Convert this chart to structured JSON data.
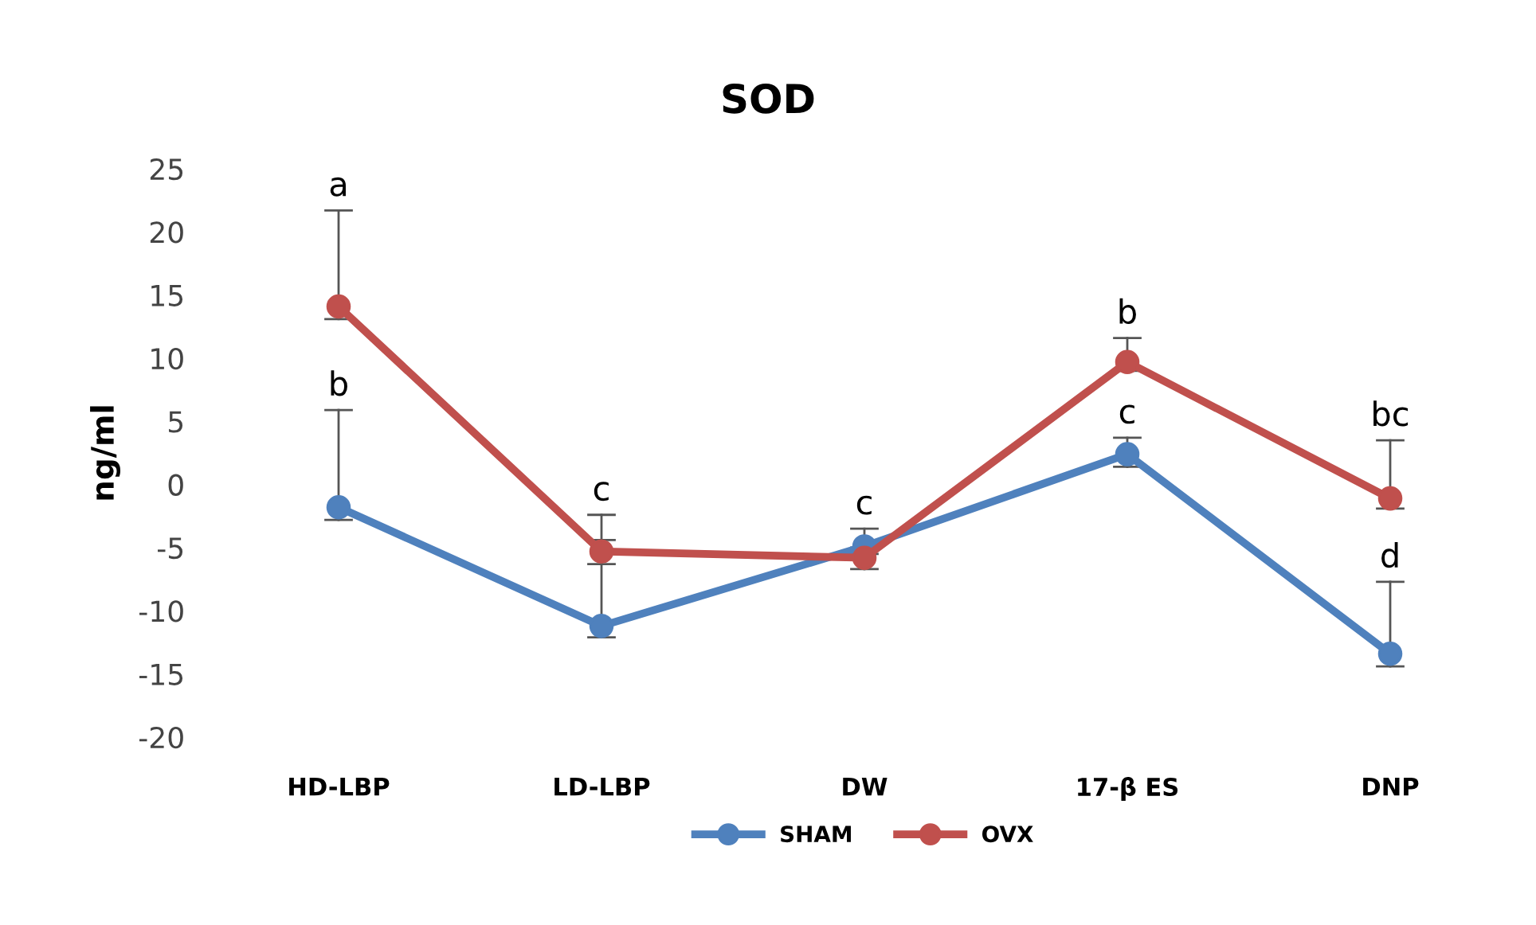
{
  "chart_data": {
    "type": "line",
    "title": "SOD",
    "ylabel": "ng/ml",
    "categories": [
      "HD-LBP",
      "LD-LBP",
      "DW",
      "17-β ES",
      "DNP"
    ],
    "series": [
      {
        "name": "SHAM",
        "color": "#4f81bd",
        "values": [
          -1.8,
          -11.2,
          -4.9,
          2.4,
          -13.4
        ],
        "errors": [
          [
            -2.8,
            5.9
          ],
          [
            -12.1,
            -4.4
          ],
          [
            -5.5,
            -3.5
          ],
          [
            1.4,
            3.7
          ],
          [
            -14.4,
            -7.7
          ]
        ]
      },
      {
        "name": "OVX",
        "color": "#c0504d",
        "values": [
          14.1,
          -5.3,
          -5.8,
          9.7,
          -1.1
        ],
        "errors": [
          [
            13.1,
            21.7
          ],
          [
            -6.3,
            -2.4
          ],
          [
            -6.7,
            -5.0
          ],
          [
            9.0,
            11.6
          ],
          [
            -1.9,
            3.5
          ]
        ]
      }
    ],
    "annotations": [
      {
        "text": "a",
        "x": "HD-LBP",
        "y": 21.7
      },
      {
        "text": "b",
        "x": "HD-LBP",
        "y": 5.9
      },
      {
        "text": "c",
        "x": "LD-LBP",
        "y": -2.4
      },
      {
        "text": "c",
        "x": "DW",
        "y": -3.5
      },
      {
        "text": "b",
        "x": "17-β ES",
        "y": 11.6
      },
      {
        "text": "c",
        "x": "17-β ES",
        "y": 3.7
      },
      {
        "text": "bc",
        "x": "DNP",
        "y": 3.5
      },
      {
        "text": "d",
        "x": "DNP",
        "y": -7.7
      }
    ],
    "ylim": [
      -20,
      25
    ],
    "yticks": [
      -20,
      -15,
      -10,
      -5,
      0,
      5,
      10,
      15,
      20,
      25
    ],
    "marker": "circle",
    "line_style": "solid",
    "grid": false,
    "legend": "bottom"
  }
}
